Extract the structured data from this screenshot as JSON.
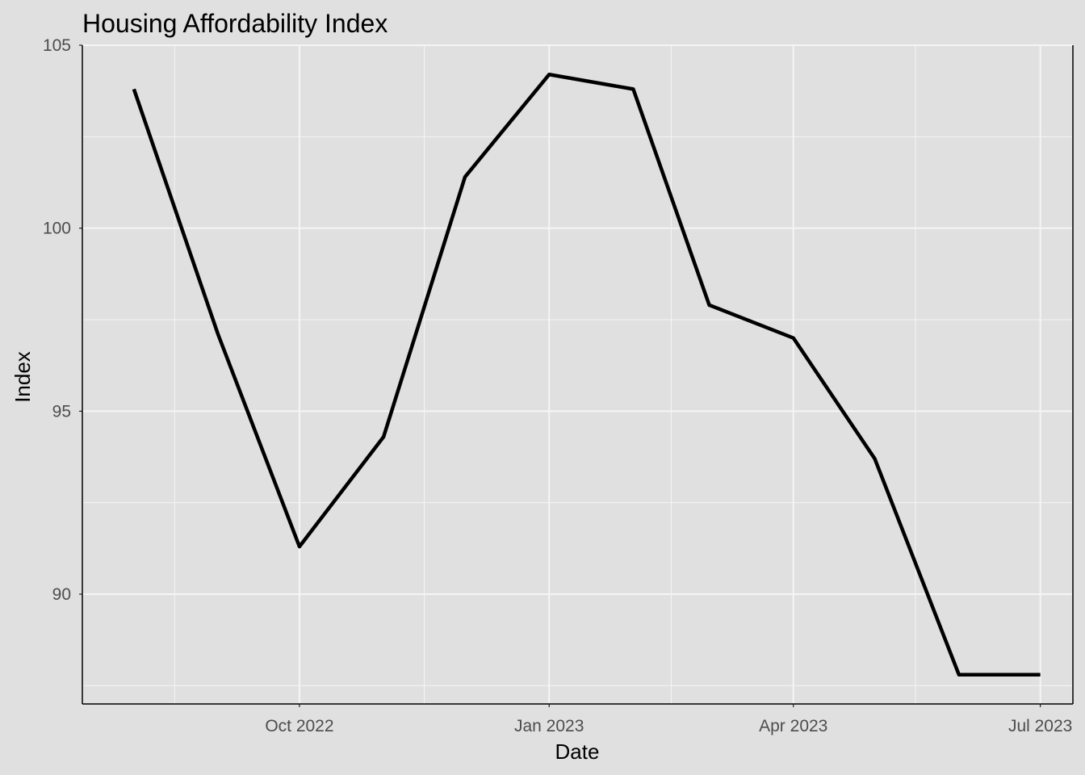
{
  "chart_data": {
    "type": "line",
    "title": "Housing Affordability Index",
    "xlabel": "Date",
    "ylabel": "Index",
    "x": [
      "2022-08-01",
      "2022-09-01",
      "2022-10-01",
      "2022-11-01",
      "2022-12-01",
      "2023-01-01",
      "2023-02-01",
      "2023-03-01",
      "2023-04-01",
      "2023-05-01",
      "2023-06-01",
      "2023-07-01"
    ],
    "series": [
      {
        "values": [
          103.8,
          97.1,
          91.3,
          94.3,
          101.4,
          104.2,
          103.8,
          97.9,
          97.0,
          93.7,
          87.8,
          87.8
        ]
      }
    ],
    "x_ticks": [
      {
        "date": "2022-10-01",
        "label": "Oct 2022"
      },
      {
        "date": "2023-01-01",
        "label": "Jan 2023"
      },
      {
        "date": "2023-04-01",
        "label": "Apr 2023"
      },
      {
        "date": "2023-07-01",
        "label": "Jul 2023"
      }
    ],
    "x_minor_ticks": [
      "2022-08-16",
      "2022-11-16",
      "2023-02-15",
      "2023-05-16"
    ],
    "y_ticks": [
      90,
      95,
      100,
      105
    ],
    "y_minor_ticks": [
      87.5,
      92.5,
      97.5,
      102.5
    ],
    "xlim": [
      "2022-07-13",
      "2023-07-13"
    ],
    "ylim": [
      87.0,
      105.0
    ],
    "grid": true,
    "legend": "none",
    "colors": {
      "background": "#e0e0e0",
      "line": "#000000",
      "grid": "#f5f5f5",
      "axis": "#000000",
      "tick_text": "#4d4d4d"
    }
  }
}
